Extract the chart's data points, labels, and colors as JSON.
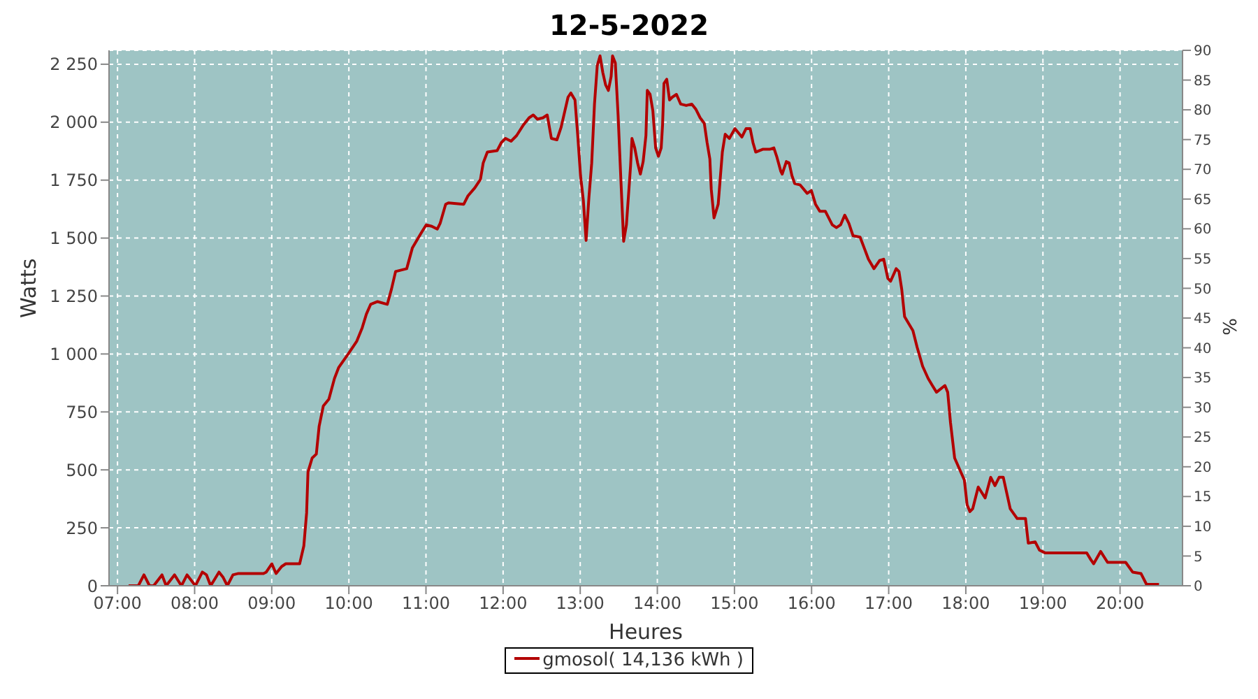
{
  "chart_data": {
    "type": "line",
    "title": "12-5-2022",
    "xlabel": "Heures",
    "ylabel": "Watts",
    "y2label": "%",
    "xlim": [
      6.89,
      20.81
    ],
    "xticks": [
      {
        "value": 7,
        "label": "07:00"
      },
      {
        "value": 8,
        "label": "08:00"
      },
      {
        "value": 9,
        "label": "09:00"
      },
      {
        "value": 10,
        "label": "10:00"
      },
      {
        "value": 11,
        "label": "11:00"
      },
      {
        "value": 12,
        "label": "12:00"
      },
      {
        "value": 13,
        "label": "13:00"
      },
      {
        "value": 14,
        "label": "14:00"
      },
      {
        "value": 15,
        "label": "15:00"
      },
      {
        "value": 16,
        "label": "16:00"
      },
      {
        "value": 17,
        "label": "17:00"
      },
      {
        "value": 18,
        "label": "18:00"
      },
      {
        "value": 19,
        "label": "19:00"
      },
      {
        "value": 20,
        "label": "20:00"
      }
    ],
    "ylim": [
      0,
      2310
    ],
    "yticks": [
      0,
      250,
      500,
      750,
      {
        "value": 1000,
        "label": "1 000"
      },
      {
        "value": 1250,
        "label": "1 250"
      },
      {
        "value": 1500,
        "label": "1 500"
      },
      {
        "value": 1750,
        "label": "1 750"
      },
      {
        "value": 2000,
        "label": "2 000"
      },
      {
        "value": 2250,
        "label": "2 250"
      }
    ],
    "y2lim": [
      0,
      90
    ],
    "y2ticks": [
      0,
      5,
      10,
      15,
      20,
      25,
      30,
      35,
      40,
      45,
      50,
      55,
      60,
      65,
      70,
      75,
      80,
      85,
      90
    ],
    "grid": true,
    "legend": "bottom",
    "line_style": "solid",
    "series": [
      {
        "name": "gmosol( 14,136 kWh )",
        "color": "#b30000",
        "x": [
          7.144,
          7.216,
          7.27,
          7.343,
          7.415,
          7.469,
          7.577,
          7.631,
          7.739,
          7.829,
          7.902,
          8.01,
          8.1,
          8.154,
          8.208,
          8.316,
          8.37,
          8.424,
          8.497,
          8.569,
          8.893,
          8.929,
          9.001,
          9.056,
          9.128,
          9.182,
          9.362,
          9.416,
          9.452,
          9.47,
          9.524,
          9.578,
          9.614,
          9.669,
          9.741,
          9.813,
          9.867,
          9.993,
          10.101,
          10.173,
          10.227,
          10.282,
          10.372,
          10.498,
          10.552,
          10.606,
          10.678,
          10.75,
          10.823,
          10.895,
          10.949,
          11.003,
          11.075,
          11.147,
          11.183,
          11.255,
          11.291,
          11.49,
          11.544,
          11.634,
          11.706,
          11.742,
          11.796,
          11.922,
          11.977,
          12.031,
          12.103,
          12.175,
          12.265,
          12.337,
          12.391,
          12.445,
          12.517,
          12.572,
          12.626,
          12.698,
          12.752,
          12.842,
          12.878,
          12.932,
          12.968,
          13.004,
          13.04,
          13.076,
          13.113,
          13.149,
          13.185,
          13.221,
          13.257,
          13.293,
          13.329,
          13.365,
          13.401,
          13.419,
          13.455,
          13.491,
          13.527,
          13.563,
          13.599,
          13.653,
          13.671,
          13.707,
          13.744,
          13.78,
          13.816,
          13.852,
          13.87,
          13.906,
          13.942,
          13.978,
          14.014,
          14.05,
          14.068,
          14.086,
          14.122,
          14.158,
          14.194,
          14.248,
          14.303,
          14.375,
          14.447,
          14.501,
          14.555,
          14.609,
          14.645,
          14.681,
          14.699,
          14.735,
          14.789,
          14.843,
          14.88,
          14.934,
          15.006,
          15.096,
          15.15,
          15.204,
          15.24,
          15.276,
          15.366,
          15.457,
          15.511,
          15.547,
          15.601,
          15.619,
          15.673,
          15.709,
          15.745,
          15.781,
          15.853,
          15.943,
          15.997,
          16.051,
          16.106,
          16.178,
          16.268,
          16.322,
          16.376,
          16.43,
          16.484,
          16.538,
          16.629,
          16.683,
          16.737,
          16.809,
          16.881,
          16.935,
          16.989,
          17.025,
          17.097,
          17.133,
          17.169,
          17.206,
          17.26,
          17.314,
          17.368,
          17.44,
          17.512,
          17.566,
          17.62,
          17.729,
          17.765,
          17.801,
          17.855,
          17.927,
          17.981,
          18.017,
          18.053,
          18.089,
          18.161,
          18.251,
          18.323,
          18.378,
          18.432,
          18.486,
          18.576,
          18.666,
          18.774,
          18.81,
          18.9,
          18.954,
          19.027,
          19.568,
          19.622,
          19.658,
          19.748,
          19.838,
          20.073,
          20.163,
          20.271,
          20.343,
          20.505
        ],
        "values": [
          0,
          0,
          0,
          47,
          0,
          0,
          47,
          0,
          47,
          0,
          47,
          0,
          59,
          47,
          0,
          59,
          36,
          0,
          47,
          53,
          53,
          59,
          95,
          53,
          83,
          95,
          95,
          172,
          314,
          491,
          551,
          568,
          687,
          776,
          805,
          894,
          941,
          1001,
          1054,
          1113,
          1172,
          1214,
          1226,
          1214,
          1279,
          1356,
          1362,
          1368,
          1457,
          1498,
          1528,
          1557,
          1551,
          1539,
          1563,
          1646,
          1652,
          1646,
          1682,
          1717,
          1753,
          1824,
          1871,
          1877,
          1912,
          1930,
          1918,
          1942,
          1989,
          2019,
          2031,
          2013,
          2019,
          2031,
          1930,
          1924,
          1978,
          2108,
          2126,
          2096,
          1942,
          1770,
          1664,
          1490,
          1676,
          1824,
          2078,
          2244,
          2286,
          2214,
          2161,
          2137,
          2197,
          2286,
          2256,
          2031,
          1753,
          1486,
          1557,
          1812,
          1930,
          1889,
          1824,
          1776,
          1830,
          1942,
          2137,
          2120,
          2049,
          1889,
          1853,
          1889,
          1989,
          2167,
          2185,
          2096,
          2108,
          2120,
          2078,
          2072,
          2078,
          2055,
          2019,
          1995,
          1912,
          1841,
          1711,
          1587,
          1646,
          1871,
          1948,
          1930,
          1972,
          1936,
          1972,
          1972,
          1912,
          1871,
          1883,
          1883,
          1889,
          1853,
          1788,
          1776,
          1830,
          1824,
          1770,
          1735,
          1729,
          1693,
          1705,
          1646,
          1616,
          1616,
          1557,
          1545,
          1557,
          1599,
          1563,
          1510,
          1504,
          1457,
          1409,
          1368,
          1403,
          1409,
          1326,
          1314,
          1368,
          1356,
          1279,
          1161,
          1131,
          1101,
          1030,
          947,
          894,
          864,
          835,
          864,
          835,
          705,
          551,
          497,
          456,
          349,
          320,
          332,
          426,
          379,
          468,
          432,
          468,
          468,
          332,
          290,
          290,
          184,
          189,
          154,
          142,
          142,
          112,
          95,
          148,
          101,
          101,
          59,
          53,
          6,
          6
        ]
      }
    ]
  }
}
